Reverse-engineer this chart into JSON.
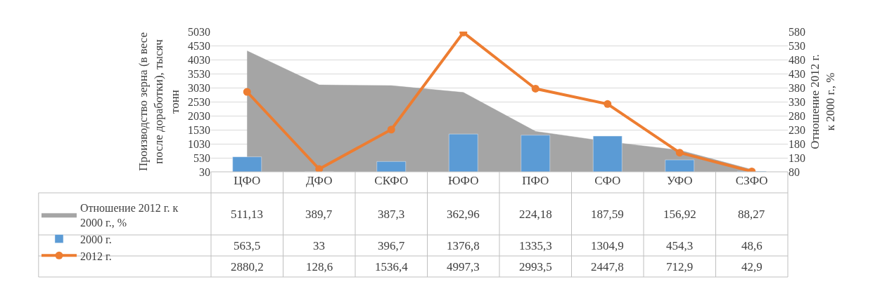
{
  "chart_data": {
    "type": "bar",
    "ylabel": "Производство зерна (в весе после доработки), тысяч тонн",
    "y2label": "Отношение 2012 г. к 2000 г., %",
    "categories": [
      "ЦФО",
      "ДФО",
      "СКФО",
      "ЮФО",
      "ПФО",
      "СФО",
      "УФО",
      "СЗФО"
    ],
    "series": [
      {
        "name": "Отношение 2012 г. к 2000 г., %",
        "type": "area",
        "axis": "y2",
        "color": "#a5a5a5",
        "values": [
          511.13,
          389.7,
          387.3,
          362.96,
          224.18,
          187.59,
          156.92,
          88.27
        ],
        "value_labels": [
          "511,13",
          "389,7",
          "387,3",
          "362,96",
          "224,18",
          "187,59",
          "156,92",
          "88,27"
        ]
      },
      {
        "name": "2000 г.",
        "color": "#5b9bd5",
        "values": [
          563.5,
          33,
          396.7,
          1376.8,
          1335.3,
          1304.9,
          454.3,
          48.6
        ],
        "value_labels": [
          "563,5",
          "33",
          "396,7",
          "1376,8",
          "1335,3",
          "1304,9",
          "454,3",
          "48,6"
        ]
      },
      {
        "name": "2012 г.",
        "type": "line",
        "color": "#ed7d31",
        "marker": "circle",
        "values": [
          2880.2,
          128.6,
          1536.4,
          4997.3,
          2993.5,
          2447.8,
          712.9,
          42.9
        ],
        "value_labels": [
          "2880,2",
          "128,6",
          "1536,4",
          "4997,3",
          "2993,5",
          "2447,8",
          "712,9",
          "42,9"
        ]
      }
    ],
    "ylim": [
      30,
      5030
    ],
    "yticks": [
      30,
      530,
      1030,
      1530,
      2030,
      2530,
      3030,
      3530,
      4030,
      4530,
      5030
    ],
    "y2lim": [
      80,
      580
    ],
    "y2ticks": [
      80,
      130,
      180,
      230,
      280,
      330,
      380,
      430,
      480,
      530,
      580
    ],
    "grid": "y",
    "legend": "bottom left"
  }
}
